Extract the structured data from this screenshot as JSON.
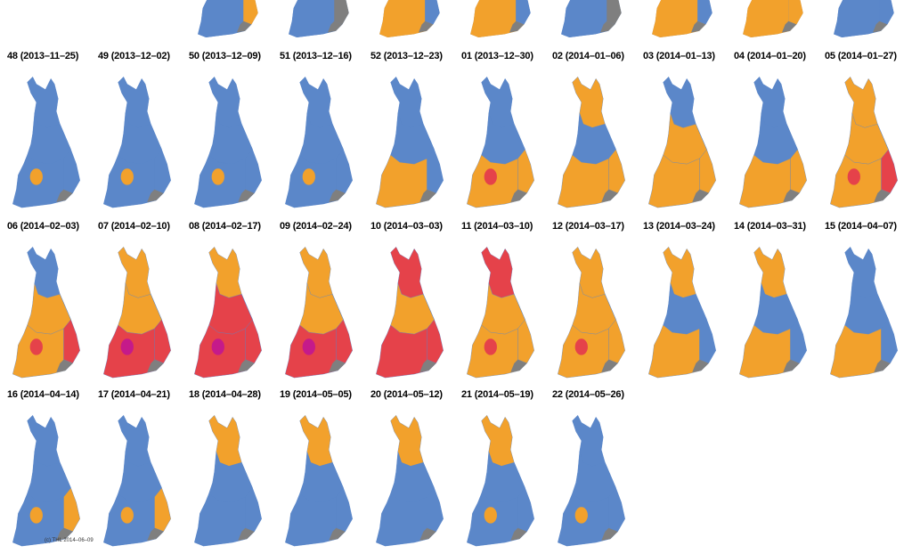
{
  "colors": {
    "blue": "#5B87C9",
    "orange": "#F2A12C",
    "red": "#E5424A",
    "grey": "#7F7F7F",
    "magenta": "#C51A8A"
  },
  "top_strip_count": 8,
  "weeks": [
    {
      "label": "48 (2013–11–25)",
      "north": "blue",
      "centre": "blue",
      "south": "blue",
      "east": "blue",
      "blobs": [
        "orange"
      ]
    },
    {
      "label": "49 (2013–12–02)",
      "north": "blue",
      "centre": "blue",
      "south": "blue",
      "east": "blue",
      "blobs": [
        "orange"
      ]
    },
    {
      "label": "50 (2013–12–09)",
      "north": "blue",
      "centre": "blue",
      "south": "blue",
      "east": "blue",
      "blobs": [
        "orange"
      ]
    },
    {
      "label": "51 (2013–12–16)",
      "north": "blue",
      "centre": "blue",
      "south": "blue",
      "east": "blue",
      "blobs": [
        "orange"
      ]
    },
    {
      "label": "52 (2013–12–23)",
      "north": "blue",
      "centre": "blue",
      "south": "orange",
      "east": "blue",
      "blobs": [
        "orange"
      ]
    },
    {
      "label": "01 (2013–12–30)",
      "north": "blue",
      "centre": "blue",
      "south": "orange",
      "east": "orange",
      "blobs": [
        "red"
      ]
    },
    {
      "label": "02 (2014–01–06)",
      "north": "orange",
      "centre": "blue",
      "south": "orange",
      "east": "orange",
      "blobs": []
    },
    {
      "label": "03 (2014–01–13)",
      "north": "blue",
      "centre": "orange",
      "south": "orange",
      "east": "orange",
      "blobs": []
    },
    {
      "label": "04 (2014–01–20)",
      "north": "blue",
      "centre": "blue",
      "south": "orange",
      "east": "orange",
      "blobs": []
    },
    {
      "label": "05 (2014–01–27)",
      "north": "orange",
      "centre": "orange",
      "south": "orange",
      "east": "red",
      "blobs": [
        "red"
      ]
    },
    {
      "label": "06 (2014–02–03)",
      "north": "blue",
      "centre": "orange",
      "south": "orange",
      "east": "red",
      "blobs": [
        "red"
      ]
    },
    {
      "label": "07 (2014–02–10)",
      "north": "orange",
      "centre": "orange",
      "south": "red",
      "east": "red",
      "blobs": [
        "magenta"
      ]
    },
    {
      "label": "08 (2014–02–17)",
      "north": "orange",
      "centre": "red",
      "south": "red",
      "east": "red",
      "blobs": [
        "magenta"
      ]
    },
    {
      "label": "09 (2014–02–24)",
      "north": "orange",
      "centre": "orange",
      "south": "red",
      "east": "red",
      "blobs": [
        "magenta"
      ]
    },
    {
      "label": "10 (2014–03–03)",
      "north": "red",
      "centre": "orange",
      "south": "red",
      "east": "red",
      "blobs": []
    },
    {
      "label": "11 (2014–03–10)",
      "north": "red",
      "centre": "orange",
      "south": "orange",
      "east": "orange",
      "blobs": [
        "red"
      ]
    },
    {
      "label": "12 (2014–03–17)",
      "north": "orange",
      "centre": "orange",
      "south": "orange",
      "east": "orange",
      "blobs": [
        "red"
      ]
    },
    {
      "label": "13 (2014–03–24)",
      "north": "orange",
      "centre": "blue",
      "south": "orange",
      "east": "blue",
      "blobs": []
    },
    {
      "label": "14 (2014–03–31)",
      "north": "orange",
      "centre": "blue",
      "south": "orange",
      "east": "blue",
      "blobs": []
    },
    {
      "label": "15 (2014–04–07)",
      "north": "blue",
      "centre": "blue",
      "south": "orange",
      "east": "blue",
      "blobs": []
    },
    {
      "label": "16 (2014–04–14)",
      "north": "blue",
      "centre": "blue",
      "south": "blue",
      "east": "orange",
      "blobs": [
        "orange"
      ]
    },
    {
      "label": "17 (2014–04–21)",
      "north": "blue",
      "centre": "blue",
      "south": "blue",
      "east": "orange",
      "blobs": [
        "orange"
      ]
    },
    {
      "label": "18 (2014–04–28)",
      "north": "orange",
      "centre": "blue",
      "south": "blue",
      "east": "blue",
      "blobs": []
    },
    {
      "label": "19 (2014–05–05)",
      "north": "orange",
      "centre": "blue",
      "south": "blue",
      "east": "blue",
      "blobs": []
    },
    {
      "label": "20 (2014–05–12)",
      "north": "orange",
      "centre": "blue",
      "south": "blue",
      "east": "blue",
      "blobs": []
    },
    {
      "label": "21 (2014–05–19)",
      "north": "orange",
      "centre": "blue",
      "south": "blue",
      "east": "blue",
      "blobs": [
        "orange"
      ]
    },
    {
      "label": "22 (2014–05–26)",
      "north": "blue",
      "centre": "blue",
      "south": "blue",
      "east": "blue",
      "blobs": [
        "orange"
      ]
    }
  ],
  "credit": "(c) THL 2014–06–09"
}
